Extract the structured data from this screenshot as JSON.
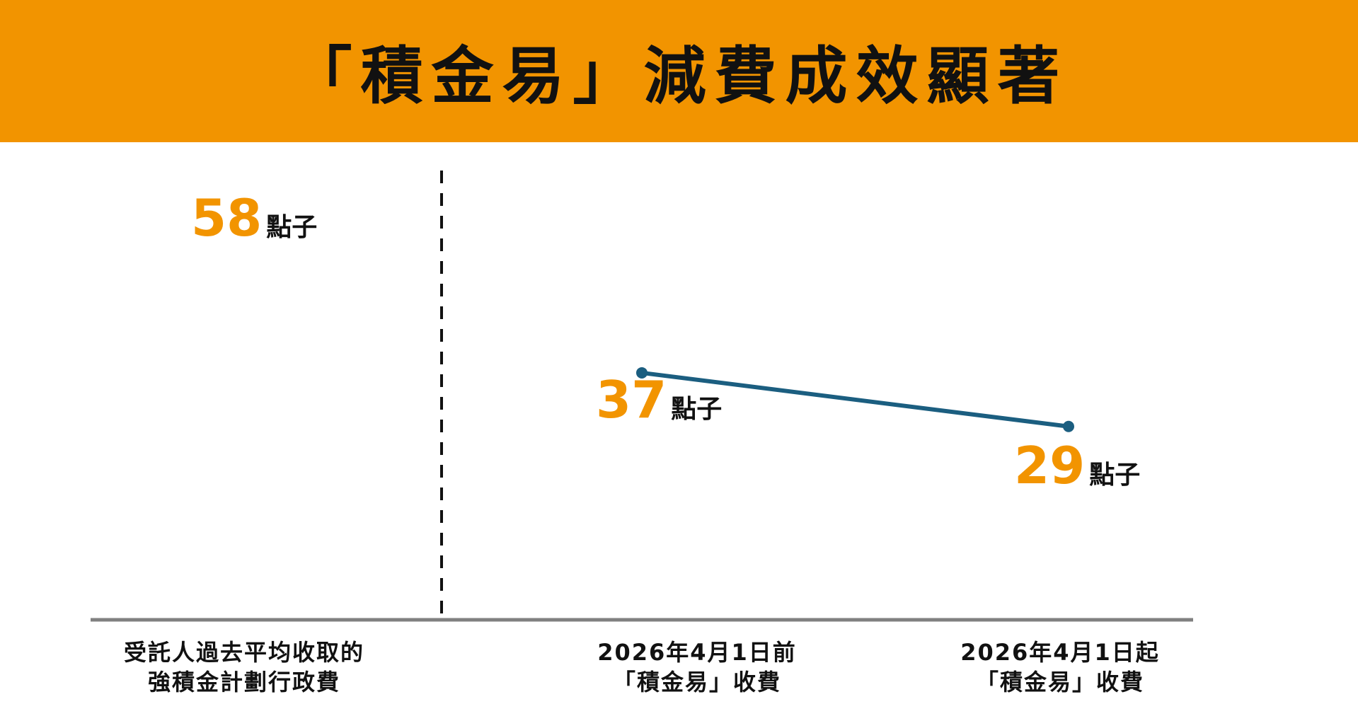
{
  "header": {
    "title": "「積金易」減費成效顯著"
  },
  "colors": {
    "banner": "#f29400",
    "value": "#f29400",
    "line": "#1b5e80",
    "axis": "#808080",
    "text": "#111111"
  },
  "chart_data": {
    "type": "line",
    "title": "「積金易」減費成效顯著",
    "unit": "點子",
    "reference": {
      "value": 58,
      "label_lines": [
        "受託人過去平均收取的",
        "強積金計劃行政費"
      ]
    },
    "categories": [
      [
        "2026年4月1日前",
        "「積金易」收費"
      ],
      [
        "2026年4月1日起",
        "「積金易」收費"
      ]
    ],
    "values": [
      37,
      29
    ],
    "ylim": [
      0,
      70
    ],
    "grid": false,
    "legend": "none"
  }
}
